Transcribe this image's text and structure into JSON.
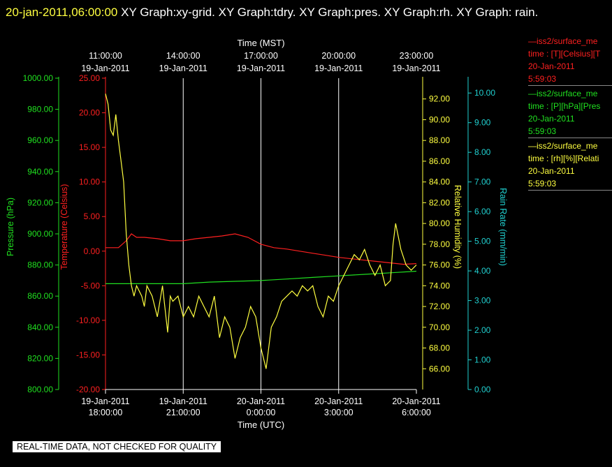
{
  "header": {
    "timestamp": "20-jan-2011,06:00:00",
    "graphs": "XY Graph:xy-grid.  XY Graph:tdry.  XY Graph:pres.  XY Graph:rh.  XY Graph: rain."
  },
  "legend": [
    {
      "name": "iss2/surface_me",
      "desc": "time : [T][Celsius][T",
      "date": "20-Jan-2011",
      "time": "5:59:03",
      "color": "#ff2020"
    },
    {
      "name": "iss2/surface_me",
      "desc": "time : [P][hPa][Pres",
      "date": "20-Jan-2011",
      "time": "5:59:03",
      "color": "#20e020"
    },
    {
      "name": "iss2/surface_me",
      "desc": "time : [rh][%][Relati",
      "date": "20-Jan-2011",
      "time": "5:59:03",
      "color": "#ffff40"
    }
  ],
  "notice": "REAL-TIME DATA, NOT CHECKED FOR QUALITY",
  "chart_data": {
    "type": "line",
    "top_axis": {
      "title": "Time (MST)",
      "ticks": [
        {
          "time": "11:00:00",
          "date": "19-Jan-2011",
          "utc_hours": 0
        },
        {
          "time": "14:00:00",
          "date": "19-Jan-2011",
          "utc_hours": 3
        },
        {
          "time": "17:00:00",
          "date": "19-Jan-2011",
          "utc_hours": 6
        },
        {
          "time": "20:00:00",
          "date": "19-Jan-2011",
          "utc_hours": 9
        },
        {
          "time": "23:00:00",
          "date": "19-Jan-2011",
          "utc_hours": 12
        }
      ]
    },
    "bottom_axis": {
      "title": "Time (UTC)",
      "range": [
        0,
        12
      ],
      "ticks": [
        {
          "date": "19-Jan-2011",
          "time": "18:00:00",
          "utc_hours": 0
        },
        {
          "date": "19-Jan-2011",
          "time": "21:00:00",
          "utc_hours": 3
        },
        {
          "date": "20-Jan-2011",
          "time": "0:00:00",
          "utc_hours": 6
        },
        {
          "date": "20-Jan-2011",
          "time": "3:00:00",
          "utc_hours": 9
        },
        {
          "date": "20-Jan-2011",
          "time": "6:00:00",
          "utc_hours": 12
        }
      ]
    },
    "y_axes": [
      {
        "id": "pres",
        "label": "Pressure (hPa)",
        "color": "#20e020",
        "range": [
          800,
          1000
        ],
        "ticks": [
          "800.00",
          "820.00",
          "840.00",
          "860.00",
          "880.00",
          "900.00",
          "920.00",
          "940.00",
          "960.00",
          "980.00",
          "1000.00"
        ]
      },
      {
        "id": "temp",
        "label": "Temperature (Celsius)",
        "color": "#ff2020",
        "range": [
          -20,
          25
        ],
        "ticks": [
          "-20.00",
          "-15.00",
          "-10.00",
          "-5.00",
          "0.00",
          "5.00",
          "10.00",
          "15.00",
          "20.00",
          "25.00"
        ]
      },
      {
        "id": "rh",
        "label": "Relative Humidity (%)",
        "color": "#ffff40",
        "range": [
          64,
          94
        ],
        "ticks": [
          "66.00",
          "68.00",
          "70.00",
          "72.00",
          "74.00",
          "76.00",
          "78.00",
          "80.00",
          "82.00",
          "84.00",
          "86.00",
          "88.00",
          "90.00",
          "92.00"
        ]
      },
      {
        "id": "rain",
        "label": "Rain Rate (mm/min)",
        "color": "#20d0d0",
        "range": [
          0,
          10.5
        ],
        "ticks": [
          "0.00",
          "1.00",
          "2.00",
          "3.00",
          "4.00",
          "5.00",
          "6.00",
          "7.00",
          "8.00",
          "9.00",
          "10.00"
        ]
      }
    ],
    "grid": "vertical",
    "series": [
      {
        "axis": "temp",
        "color": "#ff2020",
        "x": [
          0,
          0.5,
          0.8,
          1.0,
          1.2,
          1.5,
          2.0,
          2.5,
          3.0,
          3.5,
          4.0,
          4.5,
          5.0,
          5.5,
          6.0,
          6.5,
          7.0,
          7.5,
          8.0,
          8.5,
          9.0,
          9.5,
          10.0,
          10.5,
          11.0,
          11.5,
          12.0
        ],
        "y": [
          0.5,
          0.5,
          1.5,
          2.5,
          2.0,
          2.0,
          1.8,
          1.5,
          1.5,
          1.8,
          2.0,
          2.2,
          2.5,
          2.0,
          1.0,
          0.5,
          0.3,
          0,
          -0.3,
          -0.6,
          -0.9,
          -1.1,
          -1.3,
          -1.5,
          -1.7,
          -1.9,
          -1.8
        ]
      },
      {
        "axis": "pres",
        "color": "#20e020",
        "x": [
          0,
          1,
          2,
          3,
          4,
          5,
          6,
          7,
          8,
          9,
          10,
          11,
          12
        ],
        "y": [
          868,
          868,
          868,
          868,
          869,
          869.5,
          870,
          871,
          872,
          873,
          874,
          875,
          876
        ]
      },
      {
        "axis": "rh",
        "color": "#ffff40",
        "x": [
          0,
          0.1,
          0.2,
          0.3,
          0.4,
          0.5,
          0.6,
          0.7,
          0.8,
          0.9,
          1.0,
          1.1,
          1.2,
          1.4,
          1.5,
          1.6,
          1.8,
          2.0,
          2.2,
          2.4,
          2.5,
          2.6,
          2.8,
          3.0,
          3.2,
          3.4,
          3.6,
          3.8,
          4.0,
          4.2,
          4.4,
          4.6,
          4.8,
          5.0,
          5.2,
          5.4,
          5.6,
          5.8,
          6.0,
          6.2,
          6.4,
          6.6,
          6.8,
          7.0,
          7.2,
          7.4,
          7.6,
          7.8,
          8.0,
          8.2,
          8.4,
          8.6,
          8.8,
          9.0,
          9.2,
          9.4,
          9.6,
          9.8,
          10.0,
          10.2,
          10.4,
          10.6,
          10.8,
          11.0,
          11.1,
          11.2,
          11.4,
          11.6,
          11.8,
          12.0
        ],
        "y": [
          92.5,
          91.5,
          89,
          88.5,
          90.5,
          88,
          86,
          84,
          79,
          76,
          74,
          73,
          74,
          73,
          72,
          74,
          73,
          71,
          74,
          69.5,
          73,
          72.5,
          73,
          71,
          72,
          71,
          73,
          72,
          71,
          73,
          69,
          71,
          70,
          67,
          69,
          70,
          72,
          71,
          68,
          66,
          70,
          71,
          72.5,
          73,
          73.5,
          73,
          74,
          73.5,
          74,
          72,
          71,
          73,
          72.5,
          74,
          75,
          76,
          77,
          76.5,
          77.5,
          76,
          75,
          76,
          74,
          74.5,
          78,
          80,
          77.5,
          76,
          75.5,
          76
        ]
      }
    ]
  }
}
